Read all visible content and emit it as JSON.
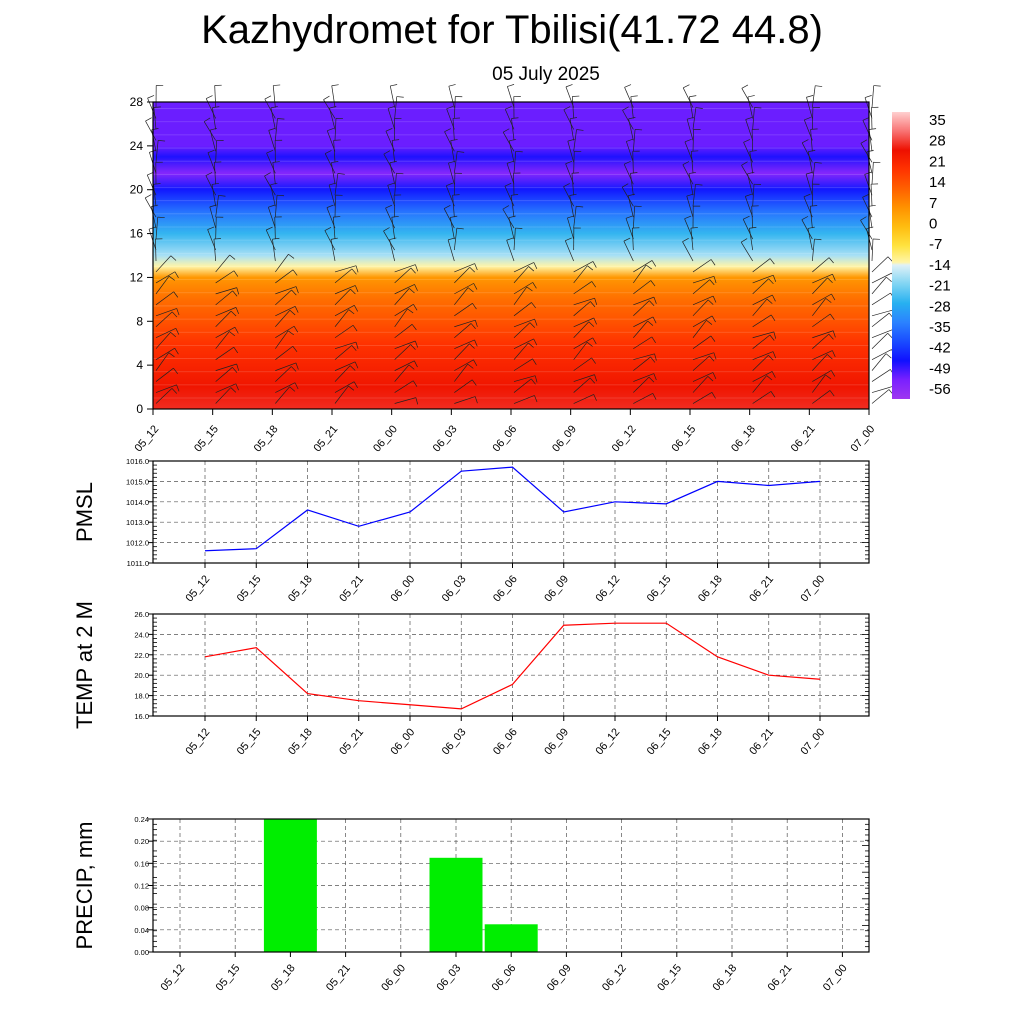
{
  "header": {
    "title": "Kazhydromet for Tbilisi(41.72 44.8)",
    "date": "05 July 2025"
  },
  "time_labels": [
    "05_12",
    "05_15",
    "05_18",
    "05_21",
    "06_00",
    "06_03",
    "06_06",
    "06_09",
    "06_12",
    "06_15",
    "06_18",
    "06_21",
    "07_00"
  ],
  "chart_data": [
    {
      "type": "heatmap",
      "title": "",
      "xlabel": "",
      "ylabel": "",
      "x": [
        "05_12",
        "05_15",
        "05_18",
        "05_21",
        "06_00",
        "06_03",
        "06_06",
        "06_09",
        "06_12",
        "06_15",
        "06_18",
        "06_21",
        "07_00"
      ],
      "y_ticks": [
        0,
        4,
        8,
        12,
        16,
        20,
        24,
        28
      ],
      "ylim": [
        0,
        28
      ],
      "colorbar": {
        "labels": [
          "35",
          "28",
          "21",
          "14",
          "7",
          "0",
          "-7",
          "-14",
          "-21",
          "-28",
          "-35",
          "-42",
          "-49",
          "-56"
        ],
        "range": [
          -63,
          42
        ]
      },
      "temperature_profile": {
        "levels": [
          0,
          2,
          4,
          6,
          8,
          10,
          12,
          13,
          14,
          16,
          18,
          20,
          21.5,
          23,
          24,
          26,
          28
        ],
        "values": [
          30,
          27,
          24,
          21,
          16,
          12,
          6,
          -13,
          -18,
          -27,
          -37,
          -48,
          -58,
          -50,
          -55,
          -55,
          -55
        ]
      },
      "overlay": "wind barbs",
      "grid": false
    },
    {
      "type": "line",
      "ylabel": "PMSL",
      "x": [
        "05_12",
        "05_15",
        "05_18",
        "05_21",
        "06_00",
        "06_03",
        "06_06",
        "06_09",
        "06_12",
        "06_15",
        "06_18",
        "06_21",
        "07_00"
      ],
      "values": [
        1011.6,
        1011.7,
        1013.6,
        1012.8,
        1013.5,
        1015.5,
        1015.7,
        1013.5,
        1014.0,
        1013.9,
        1015.0,
        1014.8,
        1015.0
      ],
      "y_ticks": [
        "1011.0",
        "1012.0",
        "1013.0",
        "1014.0",
        "1015.0",
        "1016.0"
      ],
      "ylim": [
        1011,
        1016
      ],
      "color": "#0000ff",
      "grid": true
    },
    {
      "type": "line",
      "ylabel": "TEMP at 2 M",
      "x": [
        "05_12",
        "05_15",
        "05_18",
        "05_21",
        "06_00",
        "06_03",
        "06_06",
        "06_09",
        "06_12",
        "06_15",
        "06_18",
        "06_21",
        "07_00"
      ],
      "values": [
        21.8,
        22.7,
        18.2,
        17.5,
        17.1,
        16.7,
        19.1,
        24.9,
        25.1,
        25.1,
        21.8,
        20.0,
        19.6
      ],
      "y_ticks": [
        "16.0",
        "18.0",
        "20.0",
        "22.0",
        "24.0",
        "26.0"
      ],
      "ylim": [
        16,
        26
      ],
      "color": "#ff0000",
      "grid": true
    },
    {
      "type": "bar",
      "ylabel": "PRECIP, mm",
      "categories": [
        "05_12",
        "05_15",
        "05_18",
        "05_21",
        "06_00",
        "06_03",
        "06_06",
        "06_09",
        "06_12",
        "06_15",
        "06_18",
        "06_21",
        "07_00"
      ],
      "values": [
        0,
        0,
        0.24,
        0,
        0,
        0.17,
        0.05,
        0,
        0,
        0,
        0,
        0,
        0
      ],
      "y_ticks": [
        "0.00",
        "0.04",
        "0.08",
        "0.12",
        "0.16",
        "0.20",
        "0.24"
      ],
      "ylim": [
        0,
        0.24
      ],
      "color": "#00ee00",
      "grid": true
    }
  ]
}
